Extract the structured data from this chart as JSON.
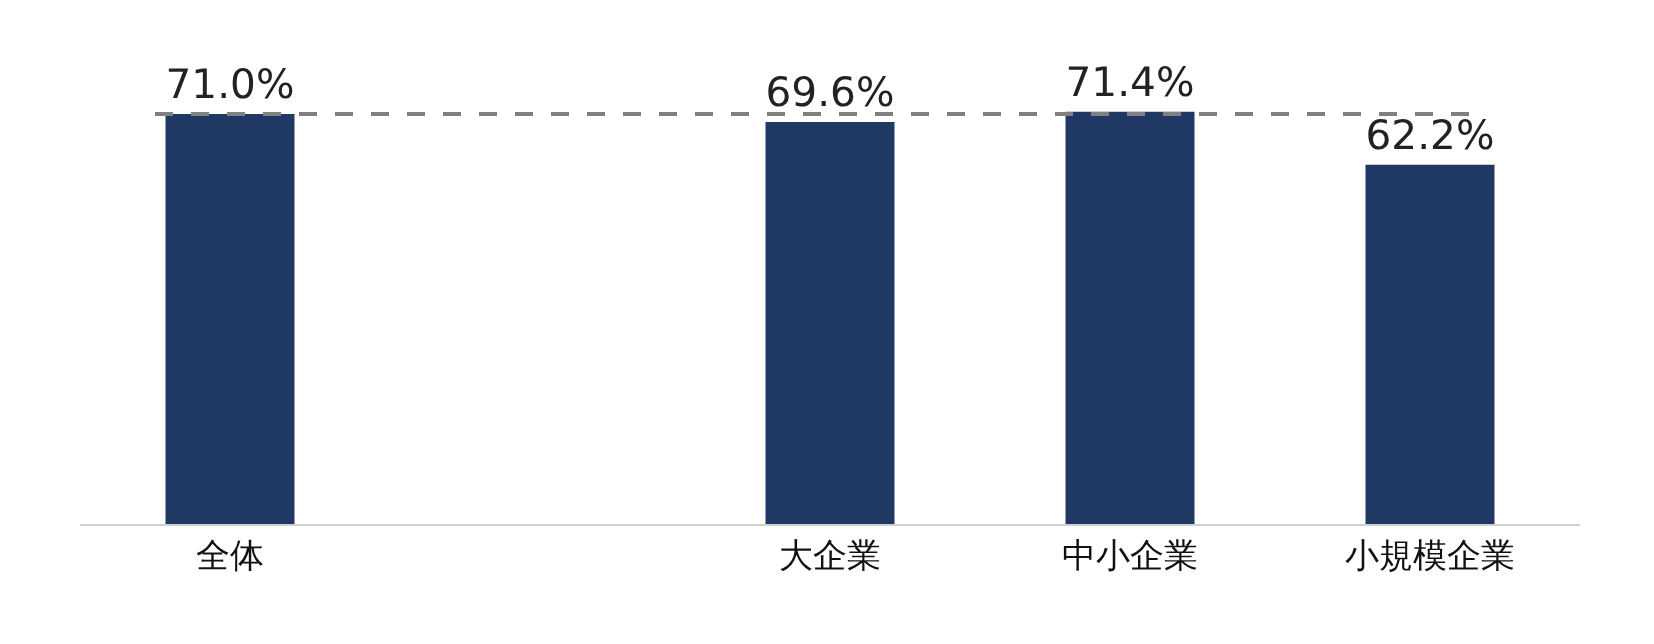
{
  "chart_data": {
    "type": "bar",
    "categories": [
      "全体",
      null,
      "大企業",
      "中小企業",
      "小規模企業"
    ],
    "values": [
      71.0,
      null,
      69.6,
      71.4,
      62.2
    ],
    "value_labels": [
      "71.0%",
      null,
      "69.6%",
      "71.4%",
      "62.2%"
    ],
    "color": "#203864",
    "tick_labels": "x",
    "grid": false,
    "ref_lines": [
      {
        "axis": "y",
        "value": 71.0,
        "color": "#808080",
        "line_style": "dashed"
      }
    ]
  }
}
